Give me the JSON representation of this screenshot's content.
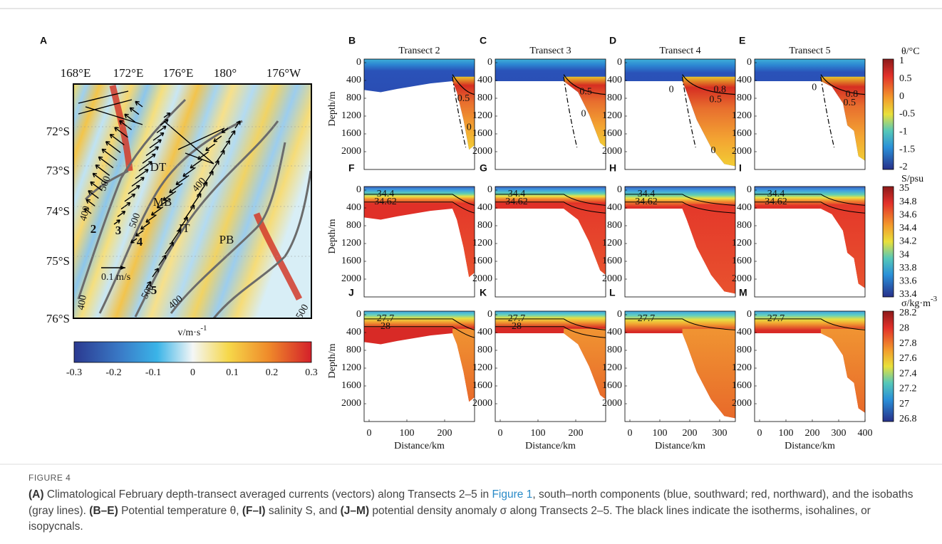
{
  "figure": {
    "panel_a": {
      "label": "A",
      "lon_ticks": [
        "168°E",
        "172°E",
        "176°E",
        "180°",
        "176°W"
      ],
      "lat_ticks": [
        "72°S",
        "73°S",
        "74°S",
        "75°S",
        "76°S"
      ],
      "region_labels": [
        "DT",
        "MB",
        "JT",
        "PB"
      ],
      "transect_labels": [
        "2",
        "3",
        "4",
        "5"
      ],
      "isobath_labels": [
        "400",
        "500",
        "400",
        "500",
        "400",
        "500",
        "400",
        "500"
      ],
      "scale_label": "0.1 m/s",
      "colorbar": {
        "title": "v/m·s",
        "title_sup": "-1",
        "ticks": [
          "-0.3",
          "-0.2",
          "-0.1",
          "0",
          "0.1",
          "0.2",
          "0.3"
        ]
      }
    },
    "sections": {
      "column_titles": [
        "Transect 2",
        "Transect 3",
        "Transect 4",
        "Transect 5"
      ],
      "rows": [
        {
          "labels": [
            "B",
            "C",
            "D",
            "E"
          ],
          "contour_labels": [
            [
              "0.5",
              "0"
            ],
            [
              "0.5",
              "0"
            ],
            [
              "0.8",
              "0.5",
              "0",
              "0"
            ],
            [
              "0.8",
              "0.5",
              "0"
            ]
          ],
          "colorbar": {
            "title": "θ/°C",
            "title_sup": "",
            "ticks": [
              "1",
              "0.5",
              "0",
              "-0.5",
              "-1",
              "-1.5",
              "-2"
            ]
          }
        },
        {
          "labels": [
            "F",
            "G",
            "H",
            "I"
          ],
          "contour_labels": [
            [
              "34.4",
              "34.62"
            ],
            [
              "34.4",
              "34.62"
            ],
            [
              "34.4",
              "34.62"
            ],
            [
              "34.4",
              "34.62"
            ]
          ],
          "colorbar": {
            "title": "S/psu",
            "title_sup": "",
            "ticks": [
              "35",
              "34.8",
              "34.6",
              "34.4",
              "34.2",
              "34",
              "33.8",
              "33.6",
              "33.4"
            ]
          }
        },
        {
          "labels": [
            "J",
            "K",
            "L",
            "M"
          ],
          "contour_labels": [
            [
              "27.7",
              "28"
            ],
            [
              "27.7",
              "28"
            ],
            [
              "27.7"
            ],
            [
              "27.7"
            ]
          ],
          "colorbar": {
            "title": "σ/kg·m",
            "title_sup": "-3",
            "ticks": [
              "28.2",
              "28",
              "27.8",
              "27.6",
              "27.4",
              "27.2",
              "27",
              "26.8"
            ]
          }
        }
      ],
      "y_label": "Depth/m",
      "depth_ticks": [
        "0",
        "400",
        "800",
        "1200",
        "1600",
        "2000"
      ],
      "x_label": "Distance/km",
      "x_ticks": [
        [
          "0",
          "100",
          "200"
        ],
        [
          "0",
          "100",
          "200"
        ],
        [
          "0",
          "100",
          "200",
          "300"
        ],
        [
          "0",
          "100",
          "200",
          "300",
          "400"
        ]
      ]
    }
  },
  "caption": {
    "label": "FIGURE 4",
    "parts": [
      "(A)",
      " Climatological February depth-transect averaged currents (vectors) along Transects 2–5 in ",
      "Figure 1",
      ", south–north components (blue, southward; red, northward), and the isobaths (gray lines). ",
      "(B–E)",
      " Potential temperature θ, ",
      "(F–I)",
      " salinity S, and ",
      "(J–M)",
      " potential density anomaly σ along Transects 2–5. The black lines indicate the isotherms, isohalines, or isopycnals."
    ]
  }
}
